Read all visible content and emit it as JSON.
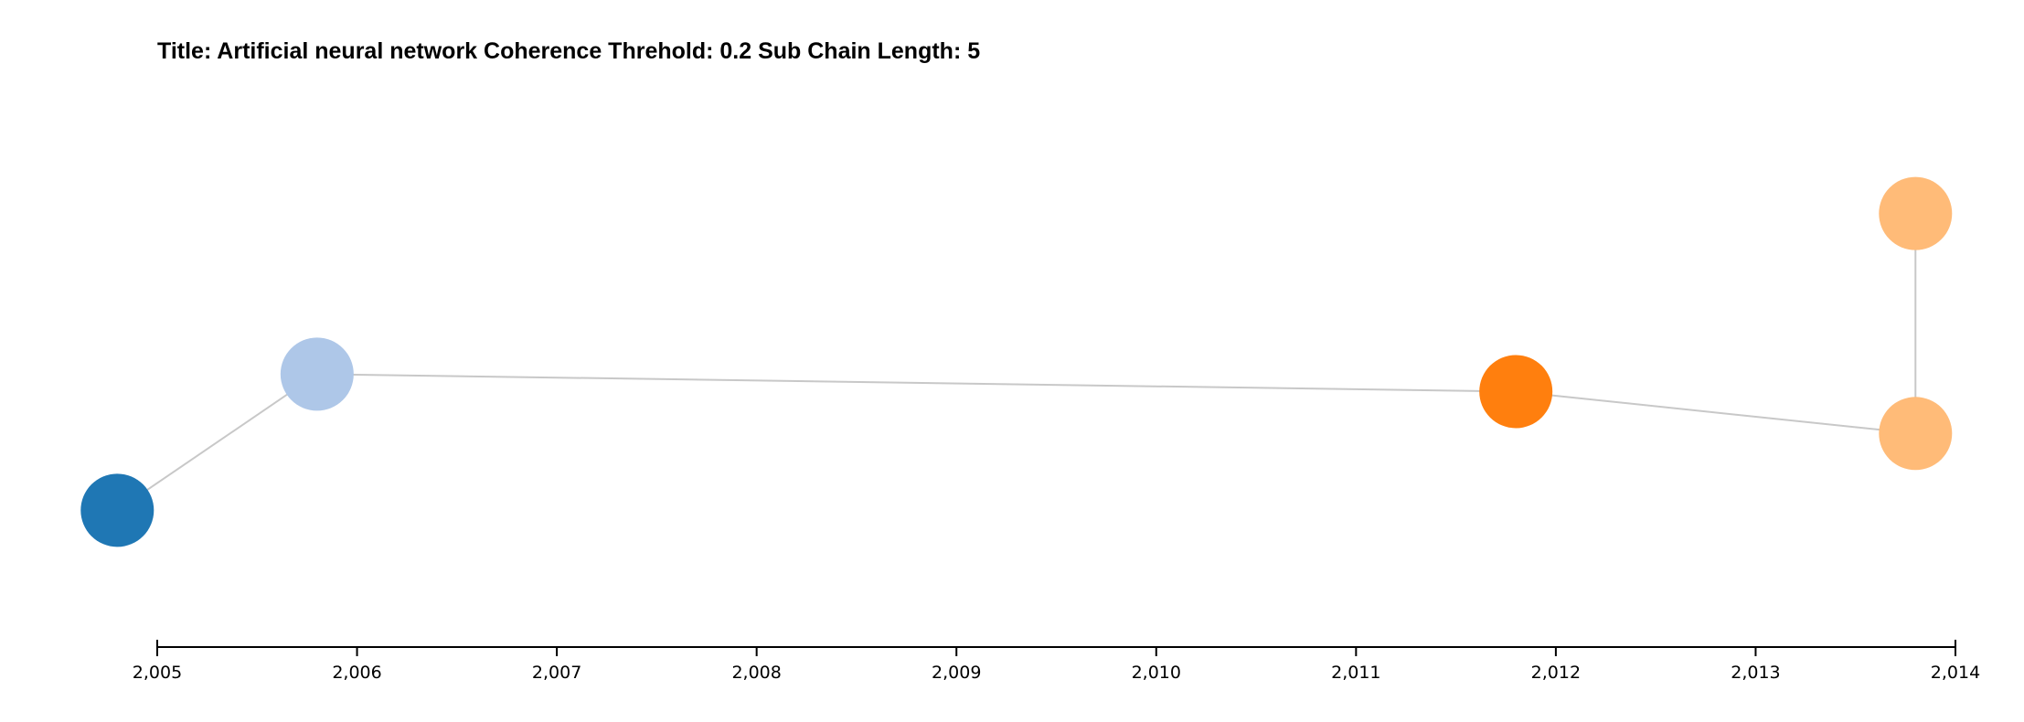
{
  "chart_data": {
    "type": "scatter",
    "title": "Title: Artificial neural network Coherence Threhold: 0.2 Sub Chain Length: 5",
    "xlabel": "",
    "ylabel": "",
    "xlim": [
      2005,
      2014
    ],
    "ylim": [
      0,
      1
    ],
    "x_ticks": [
      "2,005",
      "2,006",
      "2,007",
      "2,008",
      "2,009",
      "2,010",
      "2,011",
      "2,012",
      "2,013",
      "2,014"
    ],
    "x_tick_values": [
      2005,
      2006,
      2007,
      2008,
      2009,
      2010,
      2011,
      2012,
      2013,
      2014
    ],
    "y_axis_visible": false,
    "grid": false,
    "nodes": [
      {
        "id": 0,
        "x": 2004.8,
        "y": 0.13,
        "color": "#1f77b4"
      },
      {
        "id": 1,
        "x": 2005.8,
        "y": 0.52,
        "color": "#aec7e8"
      },
      {
        "id": 2,
        "x": 2011.8,
        "y": 0.47,
        "color": "#ff7f0e"
      },
      {
        "id": 3,
        "x": 2013.8,
        "y": 0.35,
        "color": "#ffbb78"
      },
      {
        "id": 4,
        "x": 2013.8,
        "y": 0.98,
        "color": "#ffbb78"
      }
    ],
    "links": [
      {
        "source": 0,
        "target": 1
      },
      {
        "source": 1,
        "target": 2
      },
      {
        "source": 2,
        "target": 3
      },
      {
        "source": 3,
        "target": 4
      }
    ]
  }
}
